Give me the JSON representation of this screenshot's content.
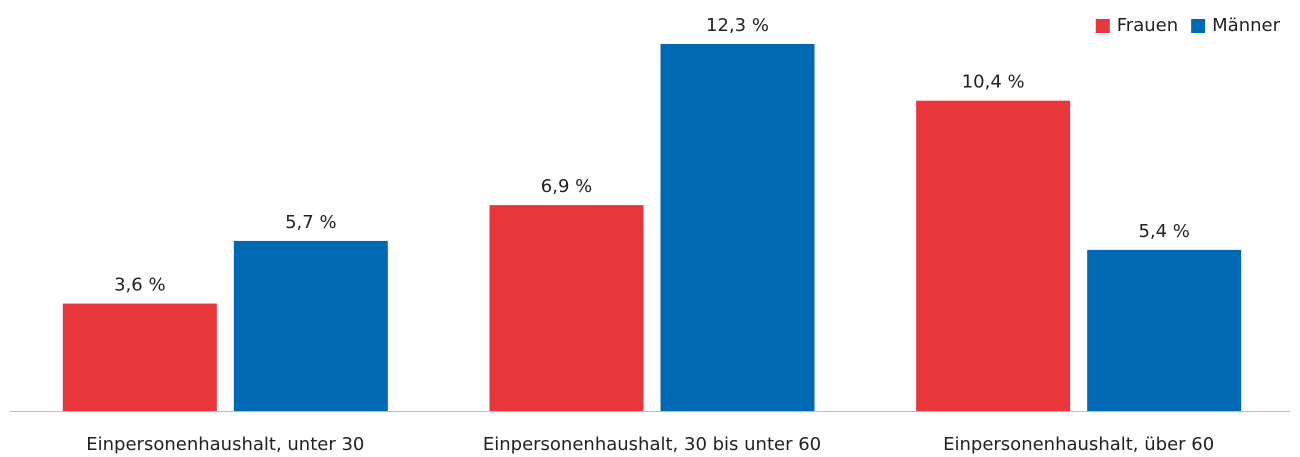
{
  "chart_data": {
    "type": "bar",
    "categories": [
      "Einpersonenhaushalt, unter 30",
      "Einpersonenhaushalt, 30 bis unter 60",
      "Einpersonenhaushalt, über 60"
    ],
    "series": [
      {
        "name": "Frauen",
        "color": "#e8363a",
        "values": [
          3.6,
          6.9,
          10.4
        ],
        "value_labels": [
          "3,6 %",
          "6,9 %",
          "10,4 %"
        ]
      },
      {
        "name": "Männer",
        "color": "#0069b4",
        "values": [
          5.7,
          12.3,
          5.4
        ],
        "value_labels": [
          "5,7 %",
          "12,3 %",
          "5,4 %"
        ]
      }
    ],
    "legend": "top-right"
  }
}
